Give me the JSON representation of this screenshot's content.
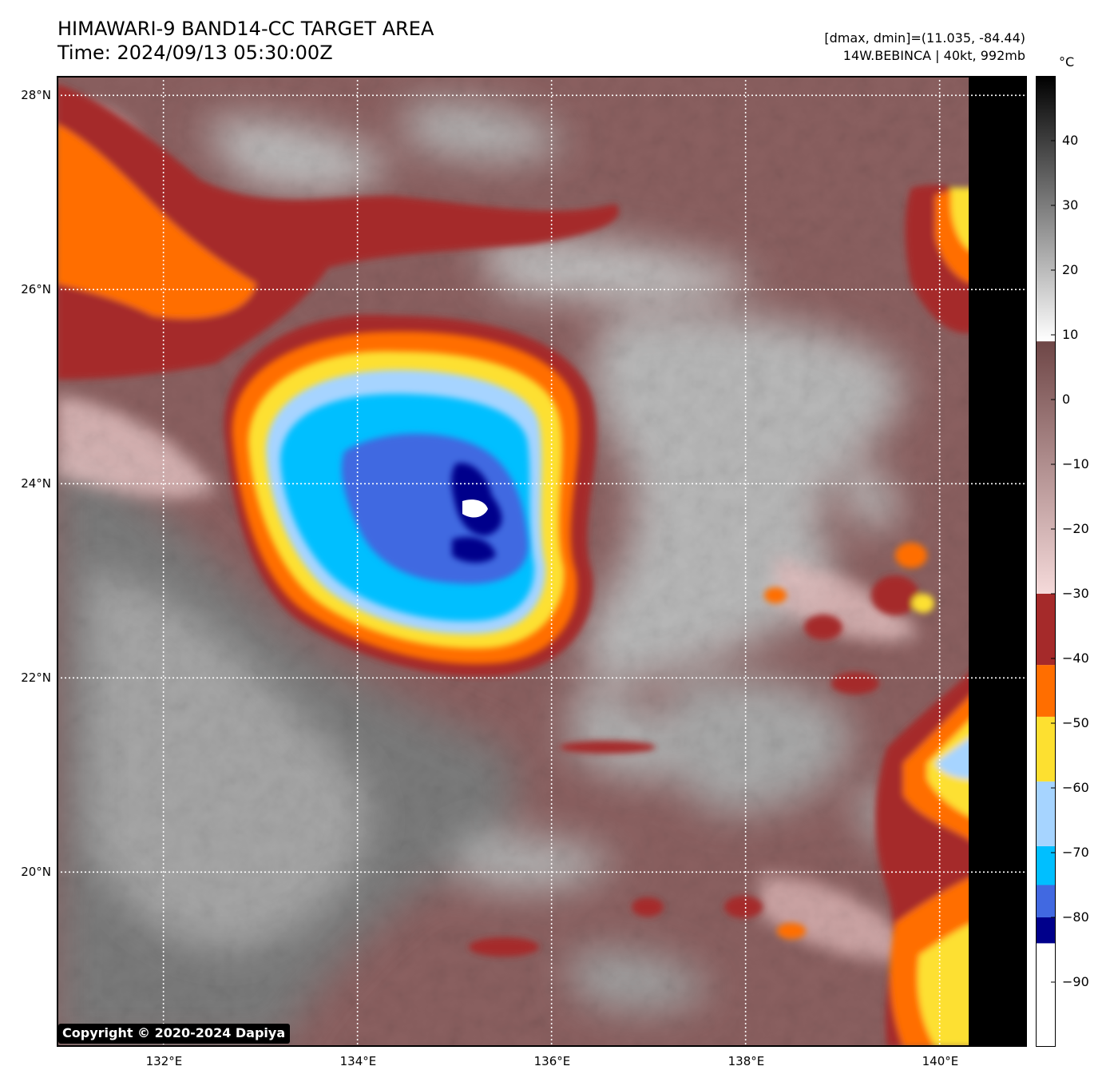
{
  "title": {
    "line1": "HIMAWARI-9 BAND14-CC TARGET AREA",
    "line2": "Time: 2024/09/13 05:30:00Z"
  },
  "info": {
    "range": "[dmax, dmin]=(11.035, -84.44)",
    "storm": "14W.BEBINCA | 40kt, 992mb"
  },
  "copyright": "Copyright © 2020-2024 Dapiya",
  "map": {
    "lat_range": [
      18.2,
      28.2
    ],
    "lon_range": [
      130.9,
      140.9
    ],
    "lat_ticks": [
      {
        "value": 28,
        "label": "28°N"
      },
      {
        "value": 26,
        "label": "26°N"
      },
      {
        "value": 24,
        "label": "24°N"
      },
      {
        "value": 22,
        "label": "22°N"
      },
      {
        "value": 20,
        "label": "20°N"
      }
    ],
    "lon_ticks": [
      {
        "value": 132,
        "label": "132°E"
      },
      {
        "value": 134,
        "label": "134°E"
      },
      {
        "value": 136,
        "label": "136°E"
      },
      {
        "value": 138,
        "label": "138°E"
      },
      {
        "value": 140,
        "label": "140°E"
      }
    ],
    "data_edge_lon": 140.3,
    "storm_center": {
      "lat": 23.8,
      "lon": 135.2
    }
  },
  "colorbar": {
    "unit": "°C",
    "range": [
      -100,
      50
    ],
    "ticks": [
      {
        "value": 40,
        "label": "40"
      },
      {
        "value": 30,
        "label": "30"
      },
      {
        "value": 20,
        "label": "20"
      },
      {
        "value": 10,
        "label": "10"
      },
      {
        "value": 0,
        "label": "0"
      },
      {
        "value": -10,
        "label": "−10"
      },
      {
        "value": -20,
        "label": "−20"
      },
      {
        "value": -30,
        "label": "−30"
      },
      {
        "value": -40,
        "label": "−40"
      },
      {
        "value": -50,
        "label": "−50"
      },
      {
        "value": -60,
        "label": "−60"
      },
      {
        "value": -70,
        "label": "−70"
      },
      {
        "value": -80,
        "label": "−80"
      },
      {
        "value": -90,
        "label": "−90"
      }
    ],
    "bands": [
      {
        "from": -100,
        "to": -84,
        "color": "#ffffff"
      },
      {
        "from": -84,
        "to": -80,
        "color": "#00008b"
      },
      {
        "from": -80,
        "to": -75,
        "color": "#4169e1"
      },
      {
        "from": -75,
        "to": -69,
        "color": "#00bfff"
      },
      {
        "from": -69,
        "to": -59,
        "color": "#a6d4ff"
      },
      {
        "from": -59,
        "to": -49,
        "color": "#fde030"
      },
      {
        "from": -49,
        "to": -41,
        "color": "#ff6e00"
      },
      {
        "from": -41,
        "to": -30,
        "color": "#a52a2a"
      }
    ],
    "gradients": [
      {
        "from": -30,
        "to": 9,
        "color_low": "#f5dada",
        "color_high": "#6e4646"
      },
      {
        "from": 9,
        "to": 50,
        "color_low": "#ffffff",
        "color_high": "#000000"
      }
    ]
  },
  "colors": {
    "land_gray_dark": "#6e6e6e",
    "land_gray_light": "#c4c4c4",
    "cloud_brown": "#8b6060",
    "cloud_pink": "#e4c0c0",
    "no_data": "#000000"
  }
}
